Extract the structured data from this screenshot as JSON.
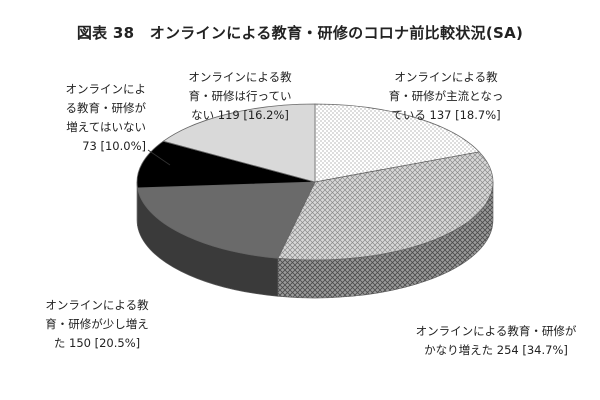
{
  "chart_data": {
    "type": "pie",
    "title": "図表 38　オンラインによる教育・研修のコロナ前比較状況(SA)",
    "categories": [
      "オンラインによる教育・研修が主流となっている",
      "オンラインによる教育・研修がかなり増えた",
      "オンラインによる教育・研修が少し増えた",
      "オンラインによる教育・研修が増えてはいない",
      "オンラインによる教育・研修は行っていない"
    ],
    "values": [
      137,
      254,
      150,
      73,
      119
    ],
    "percents": [
      18.7,
      34.7,
      20.5,
      10.0,
      16.2
    ],
    "labels": [
      "オンラインによる教\n育・研修が主流となっ\nている 137 [18.7%]",
      "オンラインによる教育・研修が\nかなり増えた 254 [34.7%]",
      "オンラインによる教\n育・研修が少し増え\nた 150 [20.5%]",
      "オンラインによ\nる教育・研修が\n増えてはいない\n73 [10.0%]",
      "オンラインによる教\n育・研修は行ってい\nない 119 [16.2%]"
    ],
    "colors": [
      "#ffffff",
      "#c8c8c8",
      "#6a6a6a",
      "#000000",
      "#d9d9d9"
    ],
    "patterns": [
      "dots",
      "crosshatch",
      "solid",
      "solid",
      "solid"
    ],
    "legend": "none"
  }
}
